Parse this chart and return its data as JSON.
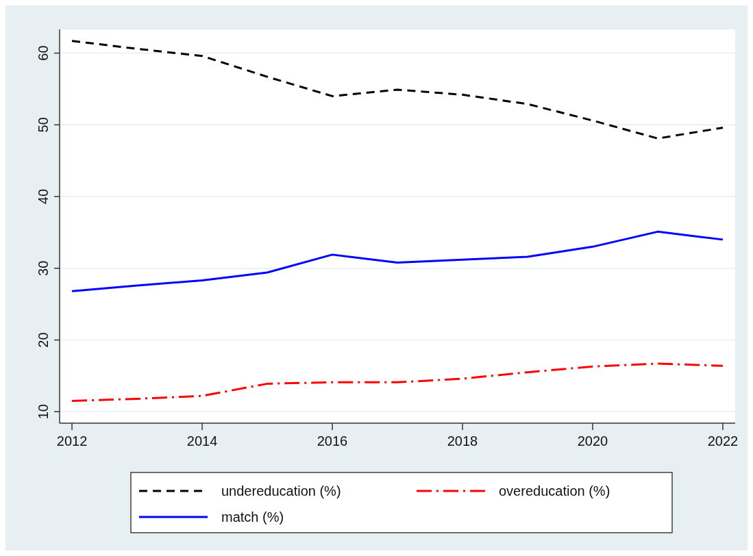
{
  "chart_data": {
    "type": "line",
    "x": [
      2012,
      2013,
      2014,
      2015,
      2016,
      2017,
      2018,
      2019,
      2020,
      2021,
      2022
    ],
    "series": [
      {
        "name": "undereducation (%)",
        "color": "#000000",
        "line_style": "dashed",
        "values": [
          61.7,
          60.6,
          59.6,
          56.7,
          54.0,
          54.9,
          54.2,
          52.9,
          50.6,
          48.1,
          49.6
        ]
      },
      {
        "name": "overeducation (%)",
        "color": "#ff0000",
        "line_style": "dashdot",
        "values": [
          11.5,
          11.8,
          12.2,
          13.9,
          14.1,
          14.1,
          14.6,
          15.5,
          16.3,
          16.7,
          16.4
        ]
      },
      {
        "name": "match (%)",
        "color": "#0000ff",
        "line_style": "solid",
        "values": [
          26.8,
          27.6,
          28.3,
          29.4,
          31.9,
          30.8,
          31.2,
          31.6,
          33.0,
          35.1,
          34.0
        ]
      }
    ],
    "xlim": [
      2011.81,
      2022.19
    ],
    "xticks": [
      2012,
      2014,
      2016,
      2018,
      2020,
      2022
    ],
    "ylim": [
      8.4,
      63.3
    ],
    "yticks": [
      10,
      20,
      30,
      40,
      50,
      60
    ],
    "grid": "y",
    "legend": "bottom"
  }
}
